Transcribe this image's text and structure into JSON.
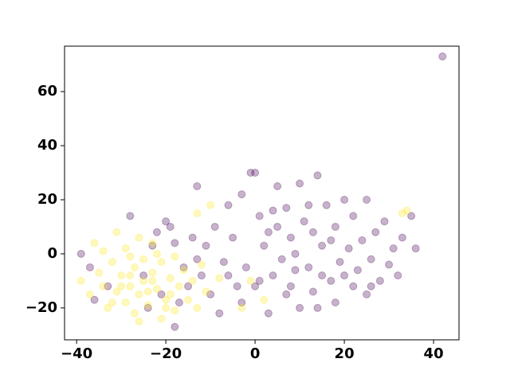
{
  "chart_data": {
    "type": "scatter",
    "series": [
      {
        "color": "#440154",
        "x": [
          42,
          -39,
          -36,
          -37,
          -33,
          -28,
          -22,
          -20,
          -18,
          -18,
          -16,
          -15,
          -13,
          -12,
          -11,
          -10,
          -9,
          -8,
          -7,
          -6,
          -5,
          -4,
          -3,
          -2,
          -1,
          0,
          1,
          1,
          2,
          3,
          4,
          5,
          5,
          6,
          7,
          8,
          8,
          9,
          10,
          10,
          11,
          12,
          13,
          14,
          14,
          15,
          16,
          17,
          18,
          19,
          20,
          21,
          22,
          22,
          23,
          24,
          25,
          25,
          26,
          27,
          28,
          29,
          30,
          31,
          32,
          33,
          35,
          36,
          -25,
          -23,
          -21,
          -19,
          -14,
          -13,
          -17,
          -24,
          12,
          7,
          3,
          0,
          15,
          20,
          18,
          26,
          9,
          4,
          -3,
          13,
          -6,
          17
        ],
        "y": [
          73,
          0,
          -17,
          -5,
          -12,
          14,
          8,
          12,
          -27,
          4,
          -5,
          -12,
          25,
          -8,
          3,
          -15,
          10,
          -22,
          -3,
          18,
          6,
          -12,
          22,
          -5,
          30,
          30,
          14,
          -10,
          3,
          -22,
          -8,
          25,
          10,
          -2,
          17,
          6,
          -12,
          0,
          -20,
          26,
          12,
          -5,
          8,
          29,
          -20,
          3,
          18,
          -10,
          10,
          -3,
          -8,
          2,
          -12,
          14,
          -6,
          5,
          -15,
          20,
          -2,
          8,
          -10,
          12,
          -4,
          2,
          -8,
          6,
          14,
          2,
          -8,
          3,
          -15,
          10,
          6,
          -2,
          -18,
          -20,
          18,
          -15,
          8,
          -12,
          -8,
          20,
          -18,
          -12,
          -6,
          16,
          -18,
          -14,
          -8,
          5
        ]
      },
      {
        "color": "#fde725",
        "x": [
          -39,
          -37,
          -36,
          -35,
          -34,
          -33,
          -32,
          -31,
          -31,
          -30,
          -29,
          -29,
          -28,
          -27,
          -27,
          -26,
          -26,
          -25,
          -25,
          -24,
          -23,
          -23,
          -22,
          -21,
          -21,
          -20,
          -19,
          -18,
          -18,
          -17,
          -16,
          -15,
          -14,
          -13,
          -12,
          -11,
          -10,
          -13,
          -8,
          -3,
          -1,
          2,
          34,
          33,
          -30,
          -28,
          -24,
          -22,
          -20,
          -26,
          -34,
          -32,
          -28,
          -19,
          -23
        ],
        "y": [
          -10,
          -15,
          4,
          -7,
          1,
          -20,
          -3,
          8,
          -14,
          -8,
          -18,
          2,
          -12,
          -5,
          -22,
          6,
          -15,
          -2,
          -10,
          -19,
          -7,
          4,
          -13,
          -24,
          -3,
          -17,
          -9,
          -1,
          -21,
          -12,
          -6,
          -17,
          -10,
          -20,
          -4,
          -14,
          18,
          15,
          -9,
          -20,
          -10,
          -17,
          16,
          15,
          -12,
          -1,
          -14,
          0,
          -20,
          -25,
          -12,
          -18,
          -8,
          -15,
          -10
        ]
      }
    ],
    "xlim": [
      -42.7,
      45.7
    ],
    "ylim": [
      -31.8,
      76.8
    ],
    "xticks": [
      {
        "value": -40,
        "label": "−40"
      },
      {
        "value": -20,
        "label": "−20"
      },
      0,
      20,
      40
    ],
    "yticks": [
      {
        "value": -20,
        "label": "−20"
      },
      0,
      20,
      40,
      60
    ],
    "alpha": 0.3
  }
}
